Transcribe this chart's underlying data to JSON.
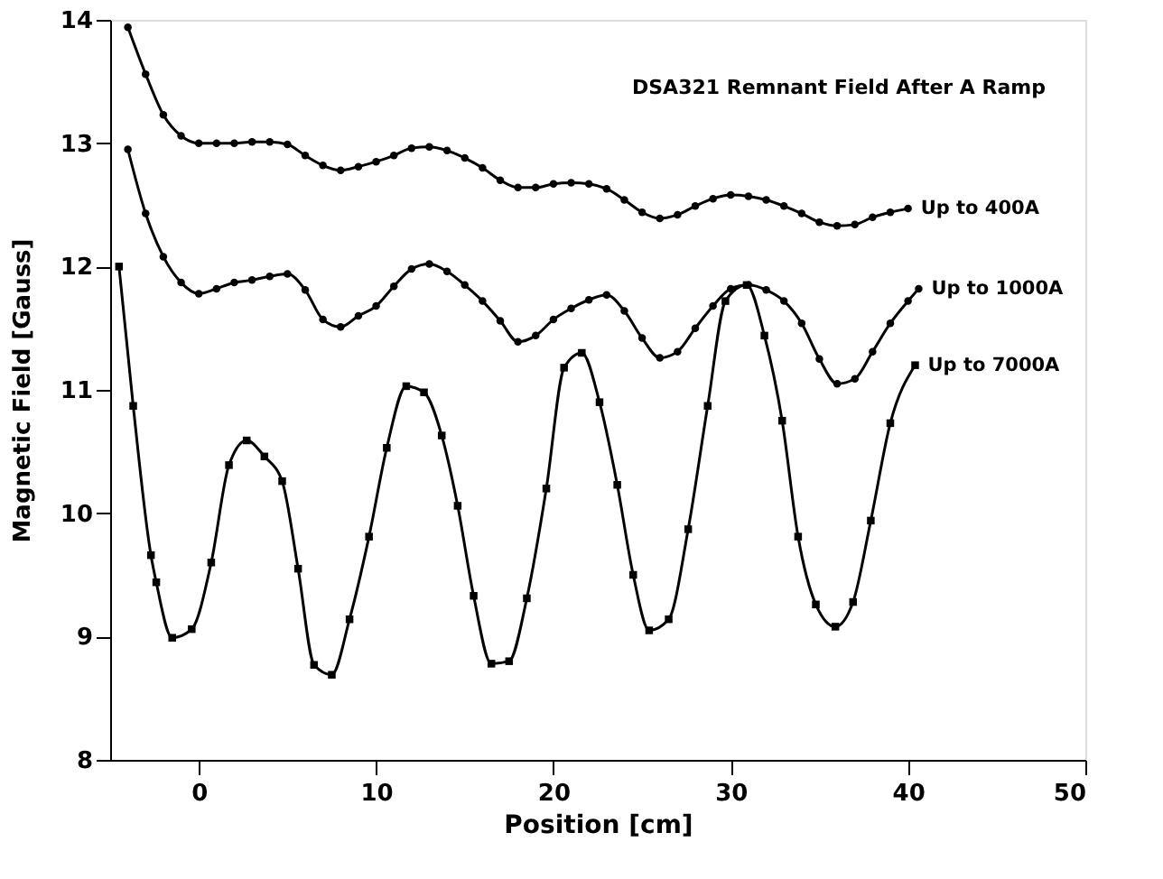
{
  "chart_data": {
    "type": "line",
    "title": "DSA321 Remnant Field After A Ramp",
    "xlabel": "Position [cm]",
    "ylabel": "Magnetic Field [Gauss]",
    "xlim": [
      -5,
      50
    ],
    "ylim": [
      8,
      14
    ],
    "xticks": [
      0,
      10,
      20,
      30,
      40,
      50
    ],
    "yticks": [
      8,
      9,
      10,
      11,
      12,
      13,
      14
    ],
    "grid": false,
    "legend": false,
    "line_style": "solid",
    "series": [
      {
        "name": "Up to 400A",
        "color": "#000000",
        "marker": "circle",
        "x": [
          -4,
          -3,
          -2,
          -1,
          0,
          1,
          2,
          3,
          4,
          5,
          6,
          7,
          8,
          9,
          10,
          11,
          12,
          13,
          14,
          15,
          16,
          17,
          18,
          19,
          20,
          21,
          22,
          23,
          24,
          25,
          26,
          27,
          28,
          29,
          30,
          31,
          32,
          33,
          34,
          35,
          36,
          37,
          38,
          39,
          40
        ],
        "values": [
          13.94,
          13.56,
          13.23,
          13.06,
          13.0,
          13.0,
          13.0,
          13.01,
          13.01,
          12.99,
          12.9,
          12.82,
          12.78,
          12.81,
          12.85,
          12.9,
          12.96,
          12.97,
          12.94,
          12.88,
          12.8,
          12.7,
          12.64,
          12.64,
          12.67,
          12.68,
          12.67,
          12.63,
          12.54,
          12.44,
          12.39,
          12.42,
          12.49,
          12.55,
          12.58,
          12.57,
          12.54,
          12.49,
          12.43,
          12.36,
          12.33,
          12.34,
          12.4,
          12.44,
          12.47
        ]
      },
      {
        "name": "Up to 1000A",
        "color": "#000000",
        "marker": "circle",
        "x": [
          -4,
          -3,
          -2,
          -1,
          0,
          1,
          2,
          3,
          4,
          5,
          6,
          7,
          8,
          9,
          10,
          11,
          12,
          13,
          14,
          15,
          16,
          17,
          18,
          19,
          20,
          21,
          22,
          23,
          24,
          25,
          26,
          27,
          28,
          29,
          30,
          31,
          32,
          33,
          34,
          35,
          36,
          37,
          38,
          39,
          40,
          40.6
        ],
        "values": [
          12.95,
          12.43,
          12.08,
          11.87,
          11.78,
          11.82,
          11.87,
          11.89,
          11.92,
          11.94,
          11.81,
          11.57,
          11.51,
          11.6,
          11.68,
          11.84,
          11.98,
          12.02,
          11.96,
          11.85,
          11.72,
          11.56,
          11.39,
          11.44,
          11.57,
          11.66,
          11.73,
          11.77,
          11.64,
          11.42,
          11.26,
          11.31,
          11.5,
          11.68,
          11.82,
          11.85,
          11.81,
          11.72,
          11.54,
          11.25,
          11.05,
          11.09,
          11.31,
          11.54,
          11.72,
          11.82
        ]
      },
      {
        "name": "Up to 7000A",
        "color": "#000000",
        "marker": "square",
        "x": [
          -4.5,
          -3.7,
          -2.7,
          -2.4,
          -1.5,
          -0.4,
          0.7,
          1.7,
          2.7,
          3.7,
          4.7,
          5.6,
          6.5,
          7.5,
          8.5,
          9.6,
          10.6,
          11.7,
          12.7,
          13.7,
          14.6,
          15.5,
          16.5,
          17.5,
          18.5,
          19.6,
          20.6,
          21.6,
          22.6,
          23.6,
          24.5,
          25.4,
          26.5,
          27.6,
          28.7,
          29.7,
          30.9,
          31.9,
          32.9,
          33.8,
          34.8,
          35.9,
          36.9,
          37.9,
          39.0,
          40.4
        ],
        "values": [
          12.0,
          10.87,
          9.66,
          9.44,
          8.99,
          9.06,
          9.6,
          10.39,
          10.59,
          10.46,
          10.26,
          9.55,
          8.77,
          8.69,
          9.14,
          9.81,
          10.53,
          11.03,
          10.98,
          10.63,
          10.06,
          9.33,
          8.78,
          8.8,
          9.31,
          10.2,
          11.18,
          11.3,
          10.9,
          10.23,
          9.5,
          9.05,
          9.14,
          9.87,
          10.87,
          11.72,
          11.85,
          11.44,
          10.75,
          9.81,
          9.26,
          9.08,
          9.28,
          9.94,
          10.73,
          11.2
        ]
      }
    ]
  }
}
